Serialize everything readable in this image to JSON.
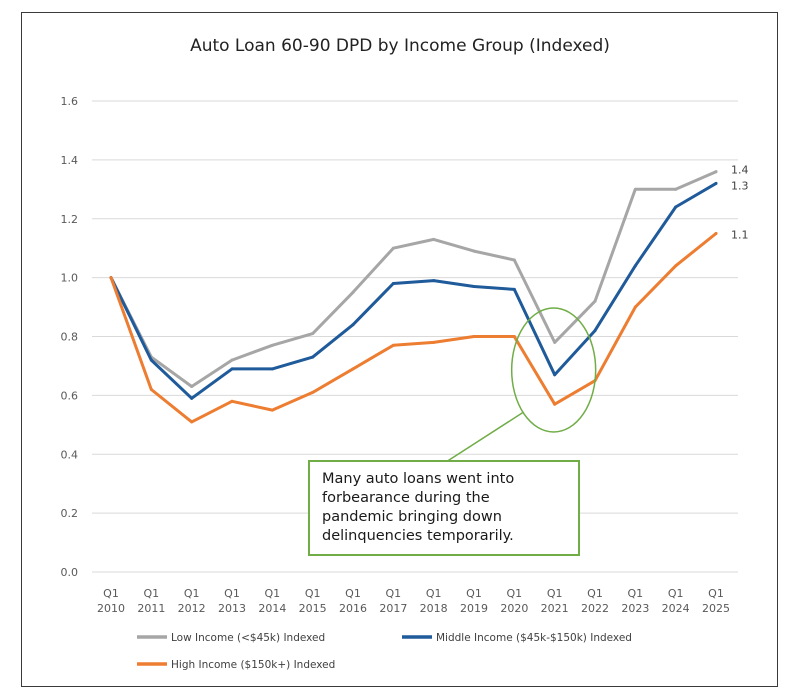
{
  "chart_data": {
    "type": "line",
    "title": "Auto Loan 60-90 DPD by Income Group (Indexed)",
    "xlabel": "",
    "ylabel": "",
    "ylim": [
      0,
      1.6
    ],
    "yticks": [
      "0.0",
      "0.2",
      "0.4",
      "0.6",
      "0.8",
      "1.0",
      "1.2",
      "1.4",
      "1.6"
    ],
    "ytick_values": [
      0,
      0.2,
      0.4,
      0.6,
      0.8,
      1.0,
      1.2,
      1.4,
      1.6
    ],
    "grid": true,
    "categories": [
      {
        "q": "Q1",
        "year": "2010"
      },
      {
        "q": "Q1",
        "year": "2011"
      },
      {
        "q": "Q1",
        "year": "2012"
      },
      {
        "q": "Q1",
        "year": "2013"
      },
      {
        "q": "Q1",
        "year": "2014"
      },
      {
        "q": "Q1",
        "year": "2015"
      },
      {
        "q": "Q1",
        "year": "2016"
      },
      {
        "q": "Q1",
        "year": "2017"
      },
      {
        "q": "Q1",
        "year": "2018"
      },
      {
        "q": "Q1",
        "year": "2019"
      },
      {
        "q": "Q1",
        "year": "2020"
      },
      {
        "q": "Q1",
        "year": "2021"
      },
      {
        "q": "Q1",
        "year": "2022"
      },
      {
        "q": "Q1",
        "year": "2023"
      },
      {
        "q": "Q1",
        "year": "2024"
      },
      {
        "q": "Q1",
        "year": "2025"
      }
    ],
    "series": [
      {
        "name": "Low Income (<$45k) Indexed",
        "color": "#a6a6a6",
        "end_label": "1.4",
        "values": [
          1.0,
          0.73,
          0.63,
          0.72,
          0.77,
          0.81,
          0.95,
          1.1,
          1.13,
          1.09,
          1.06,
          0.78,
          0.92,
          1.3,
          1.3,
          1.36
        ]
      },
      {
        "name": "Middle Income ($45k-$150k) Indexed",
        "color": "#1f5a9a",
        "end_label": "1.3",
        "values": [
          1.0,
          0.72,
          0.59,
          0.69,
          0.69,
          0.73,
          0.84,
          0.98,
          0.99,
          0.97,
          0.96,
          0.67,
          0.82,
          1.04,
          1.24,
          1.32
        ]
      },
      {
        "name": "High Income ($150k+) Indexed",
        "color": "#ed7d31",
        "end_label": "1.1",
        "values": [
          1.0,
          0.62,
          0.51,
          0.58,
          0.55,
          0.61,
          0.69,
          0.77,
          0.78,
          0.8,
          0.8,
          0.57,
          0.65,
          0.9,
          1.04,
          1.15
        ]
      }
    ],
    "annotation": {
      "lines": [
        "Many auto loans went into",
        "forbearance during the",
        "pandemic bringing down",
        "delinquencies temporarily."
      ],
      "color": "#70ad47",
      "highlight_category": "2021"
    }
  }
}
